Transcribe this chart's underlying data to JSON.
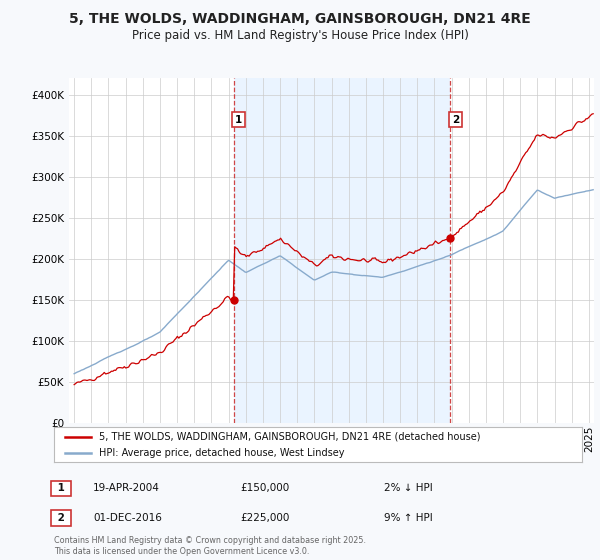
{
  "title1": "5, THE WOLDS, WADDINGHAM, GAINSBOROUGH, DN21 4RE",
  "title2": "Price paid vs. HM Land Registry's House Price Index (HPI)",
  "legend_line1": "5, THE WOLDS, WADDINGHAM, GAINSBOROUGH, DN21 4RE (detached house)",
  "legend_line2": "HPI: Average price, detached house, West Lindsey",
  "annotation1_label": "1",
  "annotation1_date": "19-APR-2004",
  "annotation1_price": "£150,000",
  "annotation1_hpi": "2% ↓ HPI",
  "annotation2_label": "2",
  "annotation2_date": "01-DEC-2016",
  "annotation2_price": "£225,000",
  "annotation2_hpi": "9% ↑ HPI",
  "footnote": "Contains HM Land Registry data © Crown copyright and database right 2025.\nThis data is licensed under the Open Government Licence v3.0.",
  "bg_color": "#f7f9fc",
  "plot_bg_color": "#ffffff",
  "shade_color": "#ddeeff",
  "line_color_red": "#cc0000",
  "line_color_blue": "#88aacc",
  "vline_color": "#cc3333",
  "ylim": [
    0,
    420000
  ],
  "yticks": [
    0,
    50000,
    100000,
    150000,
    200000,
    250000,
    300000,
    350000,
    400000
  ],
  "sale1_x": 2004.29,
  "sale1_y": 150000,
  "sale2_x": 2016.92,
  "sale2_y": 225000,
  "xmin": 1994.7,
  "xmax": 2025.3
}
